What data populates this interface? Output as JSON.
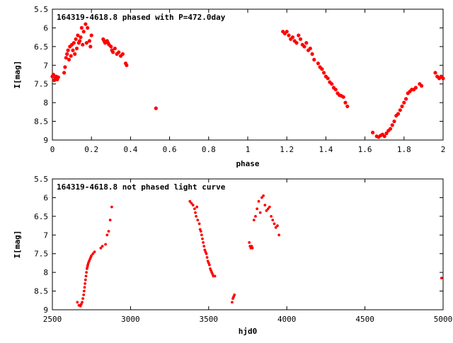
{
  "chart_data": [
    {
      "type": "scatter",
      "title": "164319-4618.8 phased with P=472.0day",
      "xlabel": "phase",
      "ylabel": "I[mag]",
      "xlim": [
        0,
        2
      ],
      "ylim": [
        5.5,
        9
      ],
      "y_inverted": true,
      "x_ticks": [
        "0",
        "0.2",
        "0.4",
        "0.6",
        "0.8",
        "1",
        "1.2",
        "1.4",
        "1.6",
        "1.8",
        "2"
      ],
      "y_ticks": [
        "5.5",
        "6",
        "6.5",
        "7",
        "7.5",
        "8",
        "8.5",
        "9"
      ],
      "marker_color": "#ff0000",
      "grid": false,
      "series": [
        {
          "x": [
            0.0,
            0.005,
            0.01,
            0.015,
            0.02,
            0.025,
            0.03,
            0.06,
            0.065,
            0.07,
            0.075,
            0.08,
            0.085,
            0.09,
            0.095,
            0.1,
            0.105,
            0.11,
            0.115,
            0.12,
            0.125,
            0.13,
            0.135,
            0.14,
            0.145,
            0.15,
            0.155,
            0.16,
            0.17,
            0.175,
            0.18,
            0.19,
            0.195,
            0.2,
            0.26,
            0.265,
            0.27,
            0.28,
            0.285,
            0.29,
            0.3,
            0.305,
            0.31,
            0.32,
            0.33,
            0.34,
            0.35,
            0.36,
            0.375,
            0.38,
            0.53,
            1.18,
            1.19,
            1.2,
            1.21,
            1.22,
            1.23,
            1.24,
            1.25,
            1.26,
            1.27,
            1.28,
            1.29,
            1.3,
            1.31,
            1.32,
            1.33,
            1.34,
            1.36,
            1.37,
            1.38,
            1.39,
            1.4,
            1.41,
            1.42,
            1.43,
            1.44,
            1.45,
            1.46,
            1.47,
            1.48,
            1.49,
            1.5,
            1.51,
            1.64,
            1.66,
            1.67,
            1.68,
            1.69,
            1.7,
            1.71,
            1.72,
            1.73,
            1.74,
            1.75,
            1.76,
            1.77,
            1.78,
            1.79,
            1.8,
            1.81,
            1.82,
            1.83,
            1.84,
            1.85,
            1.86,
            1.88,
            1.89,
            1.96,
            1.97,
            1.98,
            1.99,
            2.0
          ],
          "y": [
            7.3,
            7.25,
            7.4,
            7.35,
            7.3,
            7.38,
            7.32,
            7.2,
            7.05,
            6.8,
            6.7,
            6.6,
            6.85,
            6.5,
            6.75,
            6.45,
            6.6,
            6.4,
            6.7,
            6.3,
            6.55,
            6.2,
            6.4,
            6.35,
            6.25,
            6.0,
            6.45,
            6.1,
            5.9,
            6.4,
            6.0,
            6.35,
            6.5,
            6.2,
            6.3,
            6.35,
            6.4,
            6.35,
            6.4,
            6.45,
            6.5,
            6.6,
            6.65,
            6.55,
            6.7,
            6.65,
            6.75,
            6.7,
            6.95,
            7.0,
            8.15,
            6.1,
            6.15,
            6.1,
            6.2,
            6.3,
            6.25,
            6.35,
            6.4,
            6.2,
            6.3,
            6.45,
            6.5,
            6.4,
            6.6,
            6.55,
            6.7,
            6.85,
            6.95,
            7.05,
            7.1,
            7.2,
            7.3,
            7.35,
            7.45,
            7.5,
            7.6,
            7.65,
            7.75,
            7.8,
            7.82,
            7.85,
            8.0,
            8.1,
            8.8,
            8.9,
            8.92,
            8.88,
            8.85,
            8.9,
            8.82,
            8.75,
            8.7,
            8.6,
            8.5,
            8.35,
            8.3,
            8.2,
            8.1,
            8.0,
            7.9,
            7.75,
            7.7,
            7.65,
            7.65,
            7.6,
            7.5,
            7.55,
            7.2,
            7.3,
            7.35,
            7.3,
            7.35
          ]
        }
      ]
    },
    {
      "type": "scatter",
      "title": "164319-4618.8 not phased light curve",
      "xlabel": "hjd0",
      "ylabel": "I[mag]",
      "xlim": [
        2500,
        5000
      ],
      "ylim": [
        5.5,
        9
      ],
      "y_inverted": true,
      "x_ticks": [
        "2500",
        "3000",
        "3500",
        "4000",
        "4500",
        "5000"
      ],
      "y_ticks": [
        "5.5",
        "6",
        "6.5",
        "7",
        "7.5",
        "8",
        "8.5",
        "9"
      ],
      "marker_color": "#ff0000",
      "grid": false,
      "series": [
        {
          "x": [
            2660,
            2670,
            2680,
            2685,
            2690,
            2695,
            2700,
            2703,
            2706,
            2709,
            2712,
            2715,
            2718,
            2721,
            2724,
            2727,
            2730,
            2735,
            2740,
            2745,
            2750,
            2760,
            2770,
            2810,
            2820,
            2840,
            2850,
            2860,
            2870,
            2880,
            3380,
            3390,
            3400,
            3410,
            3415,
            3420,
            3425,
            3430,
            3440,
            3445,
            3450,
            3455,
            3460,
            3465,
            3470,
            3475,
            3480,
            3485,
            3490,
            3495,
            3500,
            3505,
            3510,
            3515,
            3520,
            3525,
            3530,
            3540,
            3650,
            3655,
            3660,
            3665,
            3760,
            3765,
            3770,
            3775,
            3780,
            3790,
            3800,
            3810,
            3820,
            3830,
            3840,
            3850,
            3860,
            3870,
            3880,
            3890,
            3900,
            3910,
            3920,
            3930,
            3940,
            3950,
            4990
          ],
          "y": [
            8.8,
            8.88,
            8.9,
            8.85,
            8.8,
            8.7,
            8.6,
            8.5,
            8.4,
            8.3,
            8.2,
            8.1,
            8.0,
            7.9,
            7.85,
            7.8,
            7.75,
            7.7,
            7.65,
            7.6,
            7.55,
            7.5,
            7.45,
            7.35,
            7.3,
            7.25,
            7.0,
            6.9,
            6.6,
            6.25,
            6.1,
            6.15,
            6.2,
            6.3,
            6.4,
            6.5,
            6.25,
            6.6,
            6.7,
            6.85,
            6.9,
            7.0,
            7.1,
            7.2,
            7.3,
            7.4,
            7.45,
            7.5,
            7.6,
            7.7,
            7.75,
            7.8,
            7.9,
            7.95,
            8.0,
            8.05,
            8.1,
            8.1,
            8.8,
            8.7,
            8.65,
            8.6,
            7.2,
            7.3,
            7.35,
            7.3,
            7.35,
            6.6,
            6.5,
            6.3,
            6.1,
            6.4,
            6.0,
            5.95,
            6.2,
            6.35,
            6.3,
            6.25,
            6.5,
            6.6,
            6.7,
            6.8,
            6.75,
            7.0,
            8.15
          ]
        }
      ]
    }
  ]
}
